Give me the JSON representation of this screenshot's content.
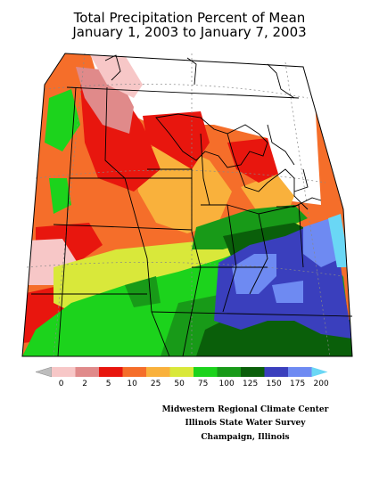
{
  "title_line1": "Total Precipitation Percent of Mean",
  "title_line2": "January 1, 2003 to January 7, 2003",
  "legend": {
    "labels": [
      "0",
      "2",
      "5",
      "10",
      "25",
      "50",
      "75",
      "100",
      "125",
      "150",
      "175",
      "200"
    ],
    "colors": [
      "#bdbdbd",
      "#f7c7c7",
      "#e08a8a",
      "#e8160e",
      "#f56e2a",
      "#f9b13c",
      "#d9e83a",
      "#1cd31c",
      "#189a18",
      "#0a5f0a",
      "#3a3fbd",
      "#6e8af2",
      "#6ad7f5"
    ]
  },
  "credits": {
    "line1": "Midwestern Regional Climate Center",
    "line2": "Illinois State Water Survey",
    "line3": "Champaign, Illinois"
  }
}
